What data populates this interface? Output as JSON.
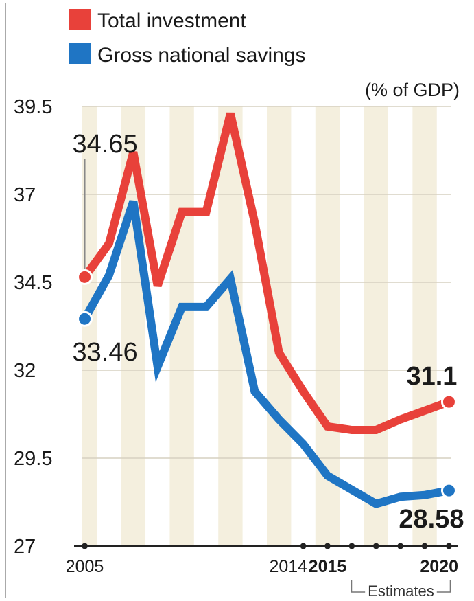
{
  "colors": {
    "investment": "#e8413a",
    "savings": "#1f75c4",
    "band": "#f4efde",
    "grid": "#d6d0c0",
    "frame": "#aaaaaa",
    "axis": "#222222"
  },
  "chart_data": {
    "type": "line",
    "unit_label": "(% of GDP)",
    "x": [
      2005,
      2006,
      2007,
      2008,
      2009,
      2010,
      2011,
      2012,
      2013,
      2014,
      2015,
      2016,
      2017,
      2018,
      2019,
      2020
    ],
    "xlim": [
      2004.9,
      2020.1
    ],
    "ylim": [
      27,
      39.5
    ],
    "yticks": [
      39.5,
      37,
      34.5,
      32,
      29.5,
      27
    ],
    "ytick_labels": [
      "39.5",
      "37",
      "34.5",
      "32",
      "29.5",
      "27"
    ],
    "xtick_labels": [
      {
        "x": 2005,
        "label": "2005",
        "bold": false
      },
      {
        "x": 2014,
        "label": "2014",
        "bold": false
      },
      {
        "x": 2015,
        "label": "2015",
        "bold": true
      },
      {
        "x": 2020,
        "label": "2020",
        "bold": true
      }
    ],
    "xtick_dots": [
      2005,
      2014,
      2015,
      2016,
      2017,
      2018,
      2019,
      2020
    ],
    "estimates_label": "Estimates",
    "estimates_range": [
      2015,
      2020
    ],
    "series": [
      {
        "name": "Total investment",
        "color": "#e8413a",
        "values": [
          34.65,
          35.6,
          38.2,
          34.4,
          36.5,
          36.5,
          39.3,
          36.2,
          32.5,
          31.4,
          30.4,
          30.3,
          30.3,
          30.6,
          30.85,
          31.1
        ]
      },
      {
        "name": "Gross national savings",
        "color": "#1f75c4",
        "values": [
          33.46,
          34.7,
          36.8,
          32.1,
          33.8,
          33.8,
          34.6,
          31.4,
          30.6,
          29.9,
          29.0,
          28.6,
          28.2,
          28.4,
          28.45,
          28.58
        ]
      }
    ],
    "annotations": [
      {
        "text": "34.65",
        "x": 2005,
        "series": 0,
        "bold": false
      },
      {
        "text": "33.46",
        "x": 2005,
        "series": 1,
        "bold": false
      },
      {
        "text": "31.1",
        "x": 2020,
        "series": 0,
        "bold": true
      },
      {
        "text": "28.58",
        "x": 2020,
        "series": 1,
        "bold": true
      }
    ]
  }
}
